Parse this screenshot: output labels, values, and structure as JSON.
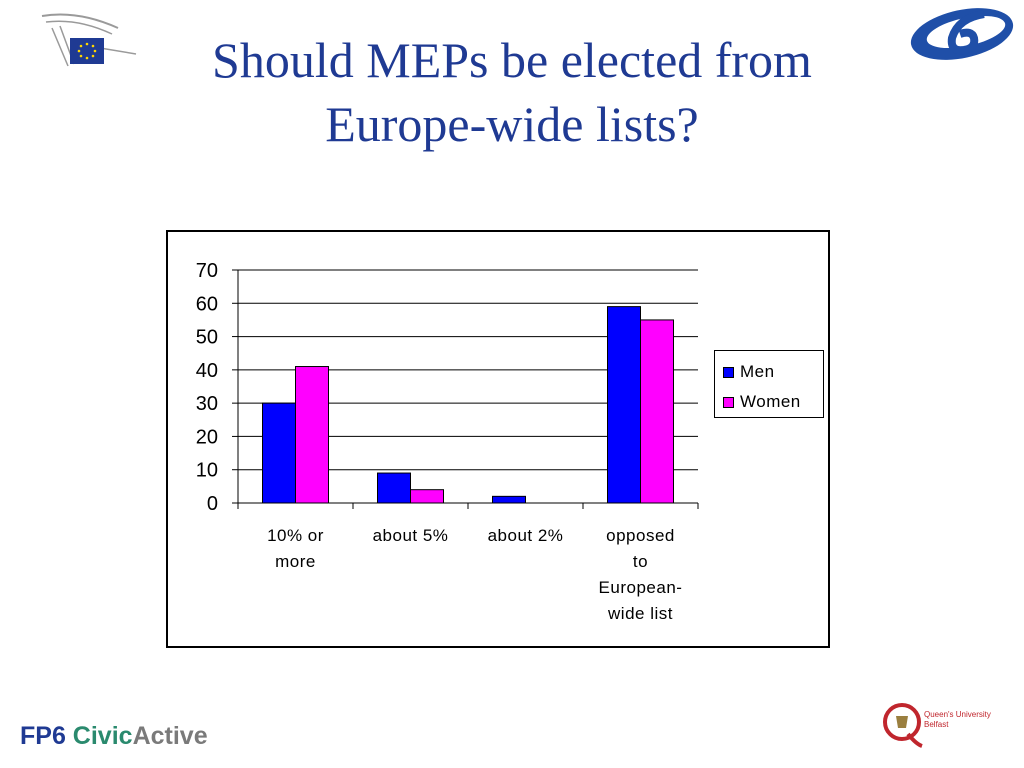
{
  "slide": {
    "title_line1": "Should MEPs be elected from",
    "title_line2": "Europe-wide lists?",
    "footer": {
      "fp6": "FP6 ",
      "civic": "Civic",
      "active": "Active"
    },
    "qub_logo_text": {
      "line1": "Queen's University",
      "line2": "Belfast"
    },
    "icons": [
      "european-parliament-logo",
      "fp6-logo",
      "queens-university-logo"
    ]
  },
  "chart_data": {
    "type": "bar",
    "categories": [
      "10% or more",
      "about 5%",
      "about 2%",
      "opposed to European-wide list"
    ],
    "category_label_lines": [
      [
        "10% or",
        "more"
      ],
      [
        "about 5%"
      ],
      [
        "about 2%"
      ],
      [
        "opposed",
        "to",
        "European-",
        "wide list"
      ]
    ],
    "series": [
      {
        "name": "Men",
        "values": [
          30,
          9,
          2,
          59
        ],
        "color": "#0000ff"
      },
      {
        "name": "Women",
        "values": [
          41,
          4,
          0,
          55
        ],
        "color": "#ff00ff"
      }
    ],
    "ylim": [
      0,
      70
    ],
    "yticks": [
      0,
      10,
      20,
      30,
      40,
      50,
      60,
      70
    ],
    "grid": true,
    "legend_position": "right",
    "title": "",
    "xlabel": "",
    "ylabel": ""
  }
}
